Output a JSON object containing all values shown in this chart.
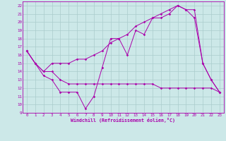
{
  "xlabel": "Windchill (Refroidissement éolien,°C)",
  "bg_color": "#cce8e8",
  "grid_color": "#aacccc",
  "line_color": "#aa00aa",
  "xlim": [
    -0.5,
    23.5
  ],
  "ylim": [
    9,
    22.5
  ],
  "xticks": [
    0,
    1,
    2,
    3,
    4,
    5,
    6,
    7,
    8,
    9,
    10,
    11,
    12,
    13,
    14,
    15,
    16,
    17,
    18,
    19,
    20,
    21,
    22,
    23
  ],
  "yticks": [
    9,
    10,
    11,
    12,
    13,
    14,
    15,
    16,
    17,
    18,
    19,
    20,
    21,
    22
  ],
  "series": [
    [
      16.5,
      15.0,
      13.5,
      13.0,
      11.5,
      11.5,
      11.5,
      9.5,
      11.0,
      14.5,
      18.0,
      18.0,
      16.0,
      19.0,
      18.5,
      20.5,
      20.5,
      21.0,
      22.0,
      21.5,
      20.5,
      15.0,
      13.0,
      11.5
    ],
    [
      16.5,
      15.0,
      14.0,
      14.0,
      13.0,
      12.5,
      12.5,
      12.5,
      12.5,
      12.5,
      12.5,
      12.5,
      12.5,
      12.5,
      12.5,
      12.5,
      12.0,
      12.0,
      12.0,
      12.0,
      12.0,
      12.0,
      12.0,
      11.5
    ],
    [
      16.5,
      15.0,
      14.0,
      15.0,
      15.0,
      15.0,
      15.5,
      15.5,
      16.0,
      16.5,
      17.5,
      18.0,
      18.5,
      19.5,
      20.0,
      20.5,
      21.0,
      21.5,
      22.0,
      21.5,
      21.5,
      15.0,
      13.0,
      11.5
    ]
  ]
}
